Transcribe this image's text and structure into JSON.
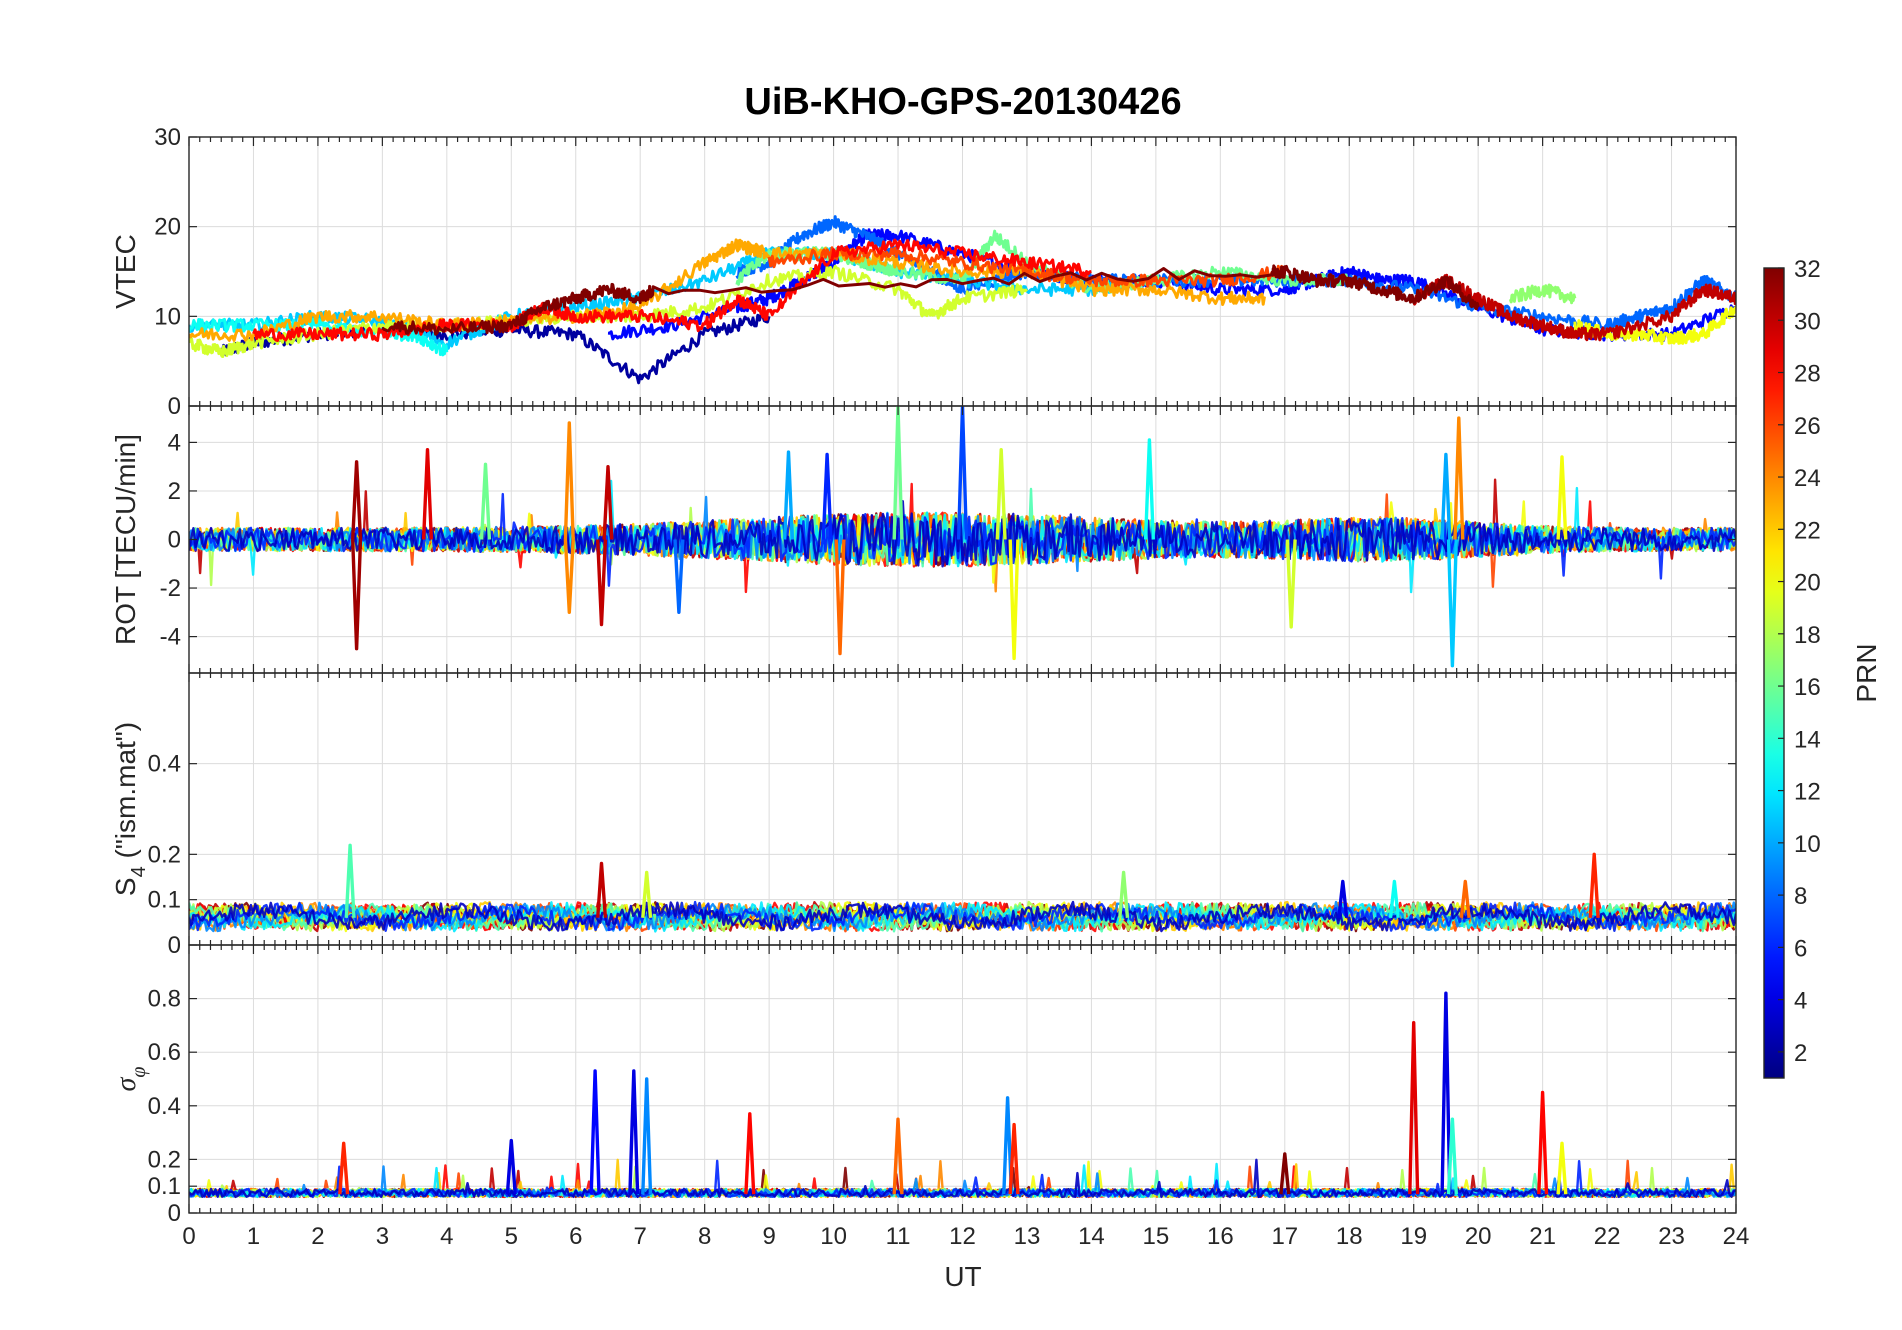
{
  "chart_data": {
    "title": "UiB-KHO-GPS-20130426",
    "type": "line",
    "x_label": "UT",
    "xlim": [
      0,
      24
    ],
    "x_ticks": [
      "0",
      "1",
      "2",
      "3",
      "4",
      "5",
      "6",
      "7",
      "8",
      "9",
      "10",
      "11",
      "12",
      "13",
      "14",
      "15",
      "16",
      "17",
      "18",
      "19",
      "20",
      "21",
      "22",
      "23",
      "24"
    ],
    "panels": [
      {
        "id": "vtec",
        "ylabel": "VTEC",
        "ylim": [
          0,
          30
        ],
        "yticks": [
          0,
          10,
          20,
          30
        ],
        "ytick_labels": [
          "0",
          "10",
          "20",
          "30"
        ],
        "series": [
          {
            "prn": 2,
            "x": [
              0.5,
              1,
              2,
              3,
              4,
              5,
              6,
              7,
              8,
              9
            ],
            "y": [
              6,
              7,
              8,
              8.5,
              8,
              8.5,
              8,
              3,
              8,
              10
            ]
          },
          {
            "prn": 5,
            "x": [
              6.5,
              7.5,
              8.5,
              9,
              9.5,
              10,
              10.5,
              11,
              12,
              13,
              14,
              15,
              16,
              17,
              17.5,
              18,
              18.5,
              19,
              20,
              21,
              22,
              23,
              24
            ],
            "y": [
              8,
              9,
              11,
              12,
              14,
              16,
              19,
              19,
              17,
              15,
              14,
              14,
              13,
              13,
              14,
              15,
              14,
              14,
              11,
              8.5,
              8,
              8,
              11
            ]
          },
          {
            "prn": 8,
            "x": [
              8.5,
              9,
              9.5,
              10,
              10.5,
              11,
              11.5,
              12,
              13,
              14,
              15,
              16,
              17,
              18,
              19,
              20,
              21,
              22,
              22.5,
              23,
              23.5,
              24
            ],
            "y": [
              15,
              16,
              19,
              20.5,
              19,
              17,
              15,
              13,
              15,
              14,
              14,
              14,
              14,
              14,
              13,
              11,
              10,
              9,
              10,
              11,
              14,
              12
            ]
          },
          {
            "prn": 11,
            "x": [
              0,
              1,
              2,
              3,
              4,
              5,
              6,
              7,
              8,
              9,
              10,
              11,
              12,
              13,
              14,
              15
            ],
            "y": [
              9,
              9,
              10,
              9.5,
              7,
              10,
              11,
              12,
              14,
              17,
              17,
              15,
              14,
              13,
              13,
              14
            ]
          },
          {
            "prn": 13,
            "x": [
              0,
              1,
              2,
              3,
              3.5,
              4
            ],
            "y": [
              9,
              9,
              9,
              8,
              8,
              6
            ]
          },
          {
            "prn": 16,
            "x": [
              8.5,
              9,
              9.5,
              10,
              10.5,
              11,
              12,
              12.5,
              13,
              14,
              15,
              16,
              17,
              18
            ],
            "y": [
              14,
              17,
              17,
              17,
              16,
              15,
              14,
              19,
              16,
              13,
              14,
              15,
              14,
              14
            ]
          },
          {
            "prn": 17,
            "x": [
              20.5,
              21,
              21.5
            ],
            "y": [
              12,
              13,
              12
            ]
          },
          {
            "prn": 19,
            "x": [
              0,
              0.5,
              1,
              2,
              3,
              4,
              5,
              6,
              7,
              8,
              9,
              10,
              11,
              11.5,
              12,
              13
            ],
            "y": [
              7,
              6,
              7,
              8,
              9,
              9,
              9.5,
              10,
              10,
              11,
              14,
              15,
              13,
              10,
              12,
              13
            ]
          },
          {
            "prn": 20,
            "x": [
              21.5,
              22,
              22.5,
              23,
              23.5,
              24
            ],
            "y": [
              9,
              8,
              8,
              7.5,
              8,
              11
            ]
          },
          {
            "prn": 23,
            "x": [
              0,
              1,
              2,
              3,
              4,
              5,
              6,
              7,
              8,
              8.5,
              9,
              10,
              11,
              12,
              13,
              14,
              15,
              16,
              16.7
            ],
            "y": [
              8,
              8,
              10,
              10,
              9,
              9.5,
              10,
              11,
              16,
              18,
              17,
              17,
              16,
              15,
              15,
              13,
              13,
              12,
              12
            ]
          },
          {
            "prn": 26,
            "x": [
              9,
              10,
              11,
              12,
              13,
              14,
              15,
              16,
              17
            ],
            "y": [
              16,
              17,
              17,
              16,
              15,
              14,
              14,
              14,
              15
            ]
          },
          {
            "prn": 28,
            "x": [
              1,
              2,
              3,
              4,
              5,
              5.5,
              6,
              7,
              8,
              8.5,
              9,
              10,
              11,
              12,
              13,
              14
            ],
            "y": [
              8,
              8,
              8,
              9,
              9,
              11,
              10,
              10,
              9,
              12,
              10,
              17,
              18,
              17,
              16,
              15
            ]
          },
          {
            "prn": 30,
            "x": [
              19,
              19.5,
              20,
              20.5,
              21,
              21.5,
              22,
              23,
              23.5,
              24
            ],
            "y": [
              12,
              14,
              12,
              10,
              9,
              8,
              8,
              10,
              13,
              12
            ]
          },
          {
            "prn": 32,
            "x": [
              3,
              4,
              5,
              5.5,
              6,
              6.5,
              7,
              7.2,
              16.8,
              17,
              17.5,
              18,
              18.5,
              19,
              19.5,
              20
            ],
            "y": [
              9,
              8.5,
              9,
              11,
              12,
              13,
              12,
              13,
              15,
              15,
              14,
              14,
              13,
              12,
              14,
              11
            ]
          }
        ]
      },
      {
        "id": "rot",
        "ylabel": "ROT [TECU/min]",
        "ylim": [
          -5.5,
          5.5
        ],
        "yticks": [
          -4,
          -2,
          0,
          2,
          4
        ],
        "ytick_labels": [
          "-4",
          "-2",
          "0",
          "2",
          "4"
        ],
        "spikes": [
          {
            "prn": 31,
            "x": 2.6,
            "y": 3.2
          },
          {
            "prn": 31,
            "x": 2.6,
            "y": -4.5
          },
          {
            "prn": 29,
            "x": 3.7,
            "y": 3.7
          },
          {
            "prn": 24,
            "x": 5.9,
            "y": 4.8
          },
          {
            "prn": 24,
            "x": 5.9,
            "y": -3.0
          },
          {
            "prn": 30,
            "x": 6.4,
            "y": -3.5
          },
          {
            "prn": 30,
            "x": 6.5,
            "y": 3.0
          },
          {
            "prn": 10,
            "x": 9.3,
            "y": 3.6
          },
          {
            "prn": 25,
            "x": 10.1,
            "y": -4.7
          },
          {
            "prn": 16,
            "x": 11.0,
            "y": 5.5
          },
          {
            "prn": 7,
            "x": 12.0,
            "y": 5.5
          },
          {
            "prn": 20,
            "x": 12.8,
            "y": -4.9
          },
          {
            "prn": 13,
            "x": 14.9,
            "y": 4.1
          },
          {
            "prn": 10,
            "x": 19.5,
            "y": 3.5
          },
          {
            "prn": 11,
            "x": 19.6,
            "y": -5.2
          },
          {
            "prn": 24,
            "x": 19.7,
            "y": 5.0
          },
          {
            "prn": 20,
            "x": 21.3,
            "y": 3.4
          },
          {
            "prn": 19,
            "x": 17.1,
            "y": -3.6
          },
          {
            "prn": 6,
            "x": 9.9,
            "y": 3.5
          },
          {
            "prn": 16,
            "x": 4.6,
            "y": 3.1
          },
          {
            "prn": 19,
            "x": 12.6,
            "y": 3.7
          },
          {
            "prn": 8,
            "x": 7.6,
            "y": -3.0
          }
        ]
      },
      {
        "id": "s4",
        "ylabel": "S4 (\"ism.mat\")",
        "ylabel_main": "S",
        "ylabel_sub": "4",
        "ylabel_rest": " (\"ism.mat\")",
        "ylim": [
          0,
          0.6
        ],
        "yticks": [
          0,
          0.1,
          0.2,
          0.4
        ],
        "ytick_labels": [
          "0",
          "0.1",
          "0.2",
          "0.4"
        ],
        "spikes": [
          {
            "prn": 15,
            "x": 2.5,
            "y": 0.22
          },
          {
            "prn": 30,
            "x": 6.4,
            "y": 0.18
          },
          {
            "prn": 19,
            "x": 7.1,
            "y": 0.16
          },
          {
            "prn": 27,
            "x": 21.8,
            "y": 0.2
          },
          {
            "prn": 4,
            "x": 17.9,
            "y": 0.14
          },
          {
            "prn": 13,
            "x": 18.7,
            "y": 0.14
          },
          {
            "prn": 17,
            "x": 14.5,
            "y": 0.16
          },
          {
            "prn": 25,
            "x": 19.8,
            "y": 0.14
          }
        ]
      },
      {
        "id": "sigma",
        "ylabel": "σφ",
        "ylabel_main": "σ",
        "ylabel_sub": "φ",
        "ylim": [
          0,
          1
        ],
        "yticks": [
          0,
          0.1,
          0.2,
          0.4,
          0.6,
          0.8
        ],
        "ytick_labels": [
          "0",
          "0.1",
          "0.2",
          "0.4",
          "0.6",
          "0.8"
        ],
        "spikes": [
          {
            "prn": 27,
            "x": 2.4,
            "y": 0.26
          },
          {
            "prn": 5,
            "x": 6.3,
            "y": 0.53
          },
          {
            "prn": 4,
            "x": 6.9,
            "y": 0.53
          },
          {
            "prn": 9,
            "x": 7.1,
            "y": 0.5
          },
          {
            "prn": 28,
            "x": 8.7,
            "y": 0.37
          },
          {
            "prn": 25,
            "x": 11.0,
            "y": 0.35
          },
          {
            "prn": 9,
            "x": 12.7,
            "y": 0.43
          },
          {
            "prn": 29,
            "x": 19.0,
            "y": 0.71
          },
          {
            "prn": 4,
            "x": 19.5,
            "y": 0.82
          },
          {
            "prn": 28,
            "x": 21.0,
            "y": 0.45
          },
          {
            "prn": 20,
            "x": 21.3,
            "y": 0.26
          },
          {
            "prn": 32,
            "x": 17.0,
            "y": 0.22
          },
          {
            "prn": 4,
            "x": 5.0,
            "y": 0.27
          },
          {
            "prn": 14,
            "x": 19.6,
            "y": 0.35
          },
          {
            "prn": 27,
            "x": 12.8,
            "y": 0.33
          }
        ]
      }
    ],
    "colorbar": {
      "label": "PRN",
      "range": [
        1,
        32
      ],
      "colormap": "jet",
      "ticks": [
        "2",
        "4",
        "6",
        "8",
        "10",
        "12",
        "14",
        "16",
        "18",
        "20",
        "22",
        "24",
        "26",
        "28",
        "30",
        "32"
      ]
    },
    "grid": true
  }
}
